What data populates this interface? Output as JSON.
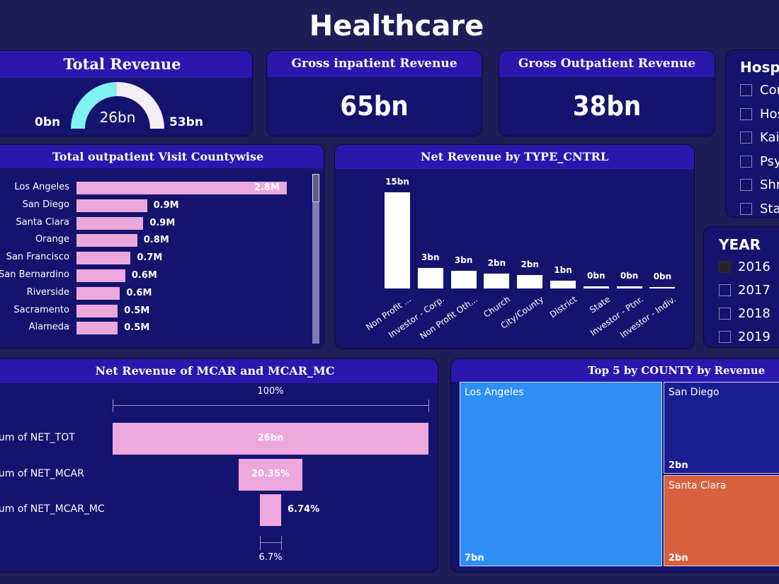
{
  "title": "Healthcare",
  "colors": {
    "background": "#1d1e57",
    "panel": "#14136e",
    "panel_header": "#2b17ae",
    "bar_pink": "#eca8dc",
    "gauge_fill": "#7ff3ef",
    "gauge_rest": "#f2eef2",
    "treemap": [
      "#2f8ff5",
      "#1a1d91",
      "#d9603e"
    ]
  },
  "total_revenue": {
    "title": "Total Revenue",
    "value": 26,
    "min": 0,
    "max": 53,
    "value_label": "26bn",
    "min_label": "0bn",
    "max_label": "53bn"
  },
  "gross_inpatient": {
    "title": "Gross inpatient Revenue",
    "value": "65bn"
  },
  "gross_outpatient": {
    "title": "Gross Outpatient Revenue",
    "value": "38bn"
  },
  "hosp_slicer": {
    "title": "Hosp",
    "items": [
      "Cor",
      "Hos",
      "Kais",
      "Psy",
      "Shr",
      "Stat"
    ]
  },
  "year_slicer": {
    "title": "YEAR",
    "items": [
      {
        "label": "2016",
        "checked": true
      },
      {
        "label": "2017",
        "checked": false
      },
      {
        "label": "2018",
        "checked": false
      },
      {
        "label": "2019",
        "checked": false
      }
    ]
  },
  "chart_data": [
    {
      "type": "bar",
      "orientation": "horizontal",
      "title": "Total outpatient Visit Countywise",
      "categories": [
        "Los Angeles",
        "San Diego",
        "Santa Clara",
        "Orange",
        "San Francisco",
        "San Bernardino",
        "Riverside",
        "Sacramento",
        "Alameda"
      ],
      "values": [
        2.8,
        0.94,
        0.89,
        0.81,
        0.72,
        0.65,
        0.58,
        0.55,
        0.55
      ],
      "labels": [
        "2.8M",
        "0.9M",
        "0.9M",
        "0.8M",
        "0.7M",
        "0.6M",
        "0.6M",
        "0.5M",
        "0.5M"
      ],
      "unit": "M"
    },
    {
      "type": "bar",
      "title": "Net Revenue by TYPE_CNTRL",
      "categories": [
        "Non Profit ...",
        "Investor - Corp.",
        "Non Profit Oth...",
        "Church",
        "City/County",
        "District",
        "State",
        "Investor - Ptnr.",
        "Investor - Indiv."
      ],
      "values": [
        15,
        3.2,
        2.8,
        2.3,
        2.1,
        1.2,
        0.3,
        0.3,
        0.1
      ],
      "labels": [
        "15bn",
        "3bn",
        "3bn",
        "2bn",
        "2bn",
        "1bn",
        "0bn",
        "0bn",
        "0bn"
      ],
      "unit": "bn"
    },
    {
      "type": "funnel",
      "title": "Net Revenue of MCAR and MCAR_MC",
      "categories": [
        "Sum of NET_TOT",
        "Sum of NET_MCAR",
        "Sum of NET_MCAR_MC"
      ],
      "percent": [
        100,
        20.35,
        6.74
      ],
      "labels": [
        "26bn",
        "20.35%",
        "6.74%"
      ],
      "top_label": "100%",
      "bottom_label": "6.7%"
    },
    {
      "type": "treemap",
      "title": "Top 5 by COUNTY by Revenue",
      "categories": [
        "Los Angeles",
        "San Diego",
        "Santa Clara"
      ],
      "values": [
        7,
        2,
        2
      ],
      "labels": [
        "7bn",
        "2bn",
        "2bn"
      ]
    }
  ]
}
